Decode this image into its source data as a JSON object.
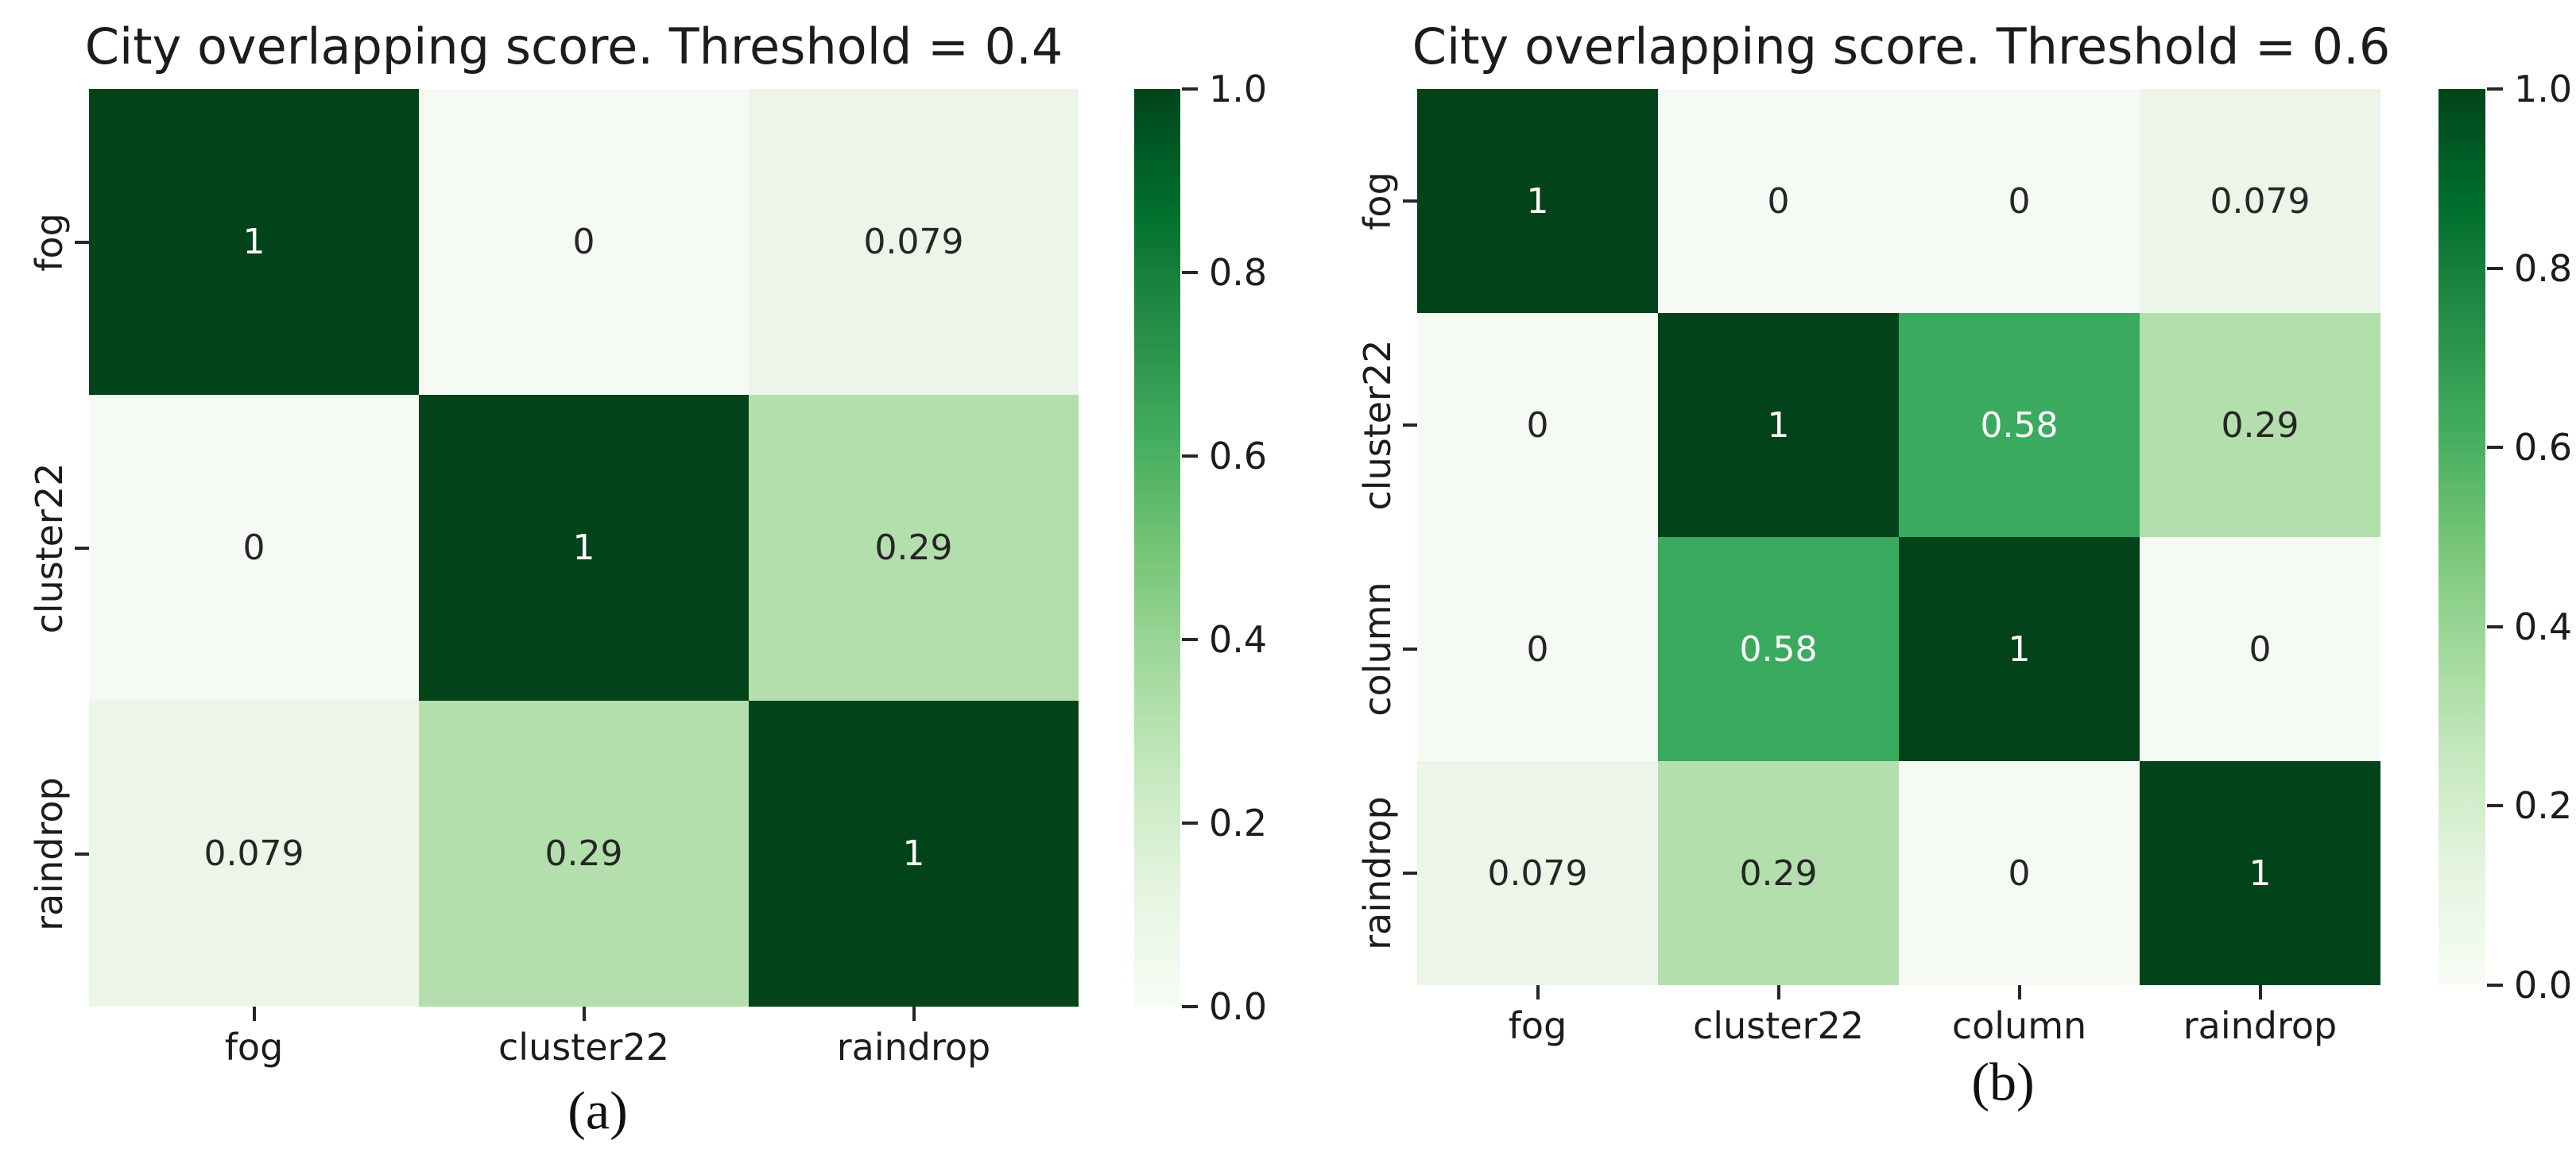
{
  "chart_data": [
    {
      "type": "heatmap",
      "title": "City overlapping score. Threshold = 0.4",
      "caption": "(a)",
      "x_labels": [
        "fog",
        "cluster22",
        "raindrop"
      ],
      "y_labels": [
        "fog",
        "cluster22",
        "raindrop"
      ],
      "matrix": [
        [
          1,
          0,
          0.079
        ],
        [
          0,
          1,
          0.29
        ],
        [
          0.079,
          0.29,
          1
        ]
      ],
      "cell_labels": [
        [
          "1",
          "0",
          "0.079"
        ],
        [
          "0",
          "1",
          "0.29"
        ],
        [
          "0.079",
          "0.29",
          "1"
        ]
      ],
      "colorbar_ticks": [
        "1.0",
        "0.8",
        "0.6",
        "0.4",
        "0.2",
        "0.0"
      ],
      "colorbar_range": [
        0.0,
        1.0
      ],
      "colormap": "Greens",
      "legend_position": "right"
    },
    {
      "type": "heatmap",
      "title": "City overlapping score. Threshold = 0.6",
      "caption": "(b)",
      "x_labels": [
        "fog",
        "cluster22",
        "column",
        "raindrop"
      ],
      "y_labels": [
        "fog",
        "cluster22",
        "column",
        "raindrop"
      ],
      "matrix": [
        [
          1,
          0,
          0,
          0.079
        ],
        [
          0,
          1,
          0.58,
          0.29
        ],
        [
          0,
          0.58,
          1,
          0
        ],
        [
          0.079,
          0.29,
          0,
          1
        ]
      ],
      "cell_labels": [
        [
          "1",
          "0",
          "0",
          "0.079"
        ],
        [
          "0",
          "1",
          "0.58",
          "0.29"
        ],
        [
          "0",
          "0.58",
          "1",
          "0"
        ],
        [
          "0.079",
          "0.29",
          "0",
          "1"
        ]
      ],
      "colorbar_ticks": [
        "1.0",
        "0.8",
        "0.6",
        "0.4",
        "0.2",
        "0.0"
      ],
      "colorbar_range": [
        0.0,
        1.0
      ],
      "colormap": "Greens",
      "legend_position": "right"
    }
  ],
  "colors": {
    "cell_values": {
      "1": "#034319",
      "0.58": "#3aab5e",
      "0.29": "#b2dfab",
      "0.079": "#ecf5e8",
      "0": "#f6faf4"
    },
    "cell_text_dark": "#262626",
    "cell_text_light": "#ffffff",
    "colorbar_gradient": [
      "#00441b",
      "#006d2c",
      "#238b45",
      "#41ab5d",
      "#74c476",
      "#a1d99b",
      "#c7e9c0",
      "#e5f5e0",
      "#f7fcf5"
    ],
    "axis_text": "#1c1c1c",
    "background": "#ffffff"
  }
}
